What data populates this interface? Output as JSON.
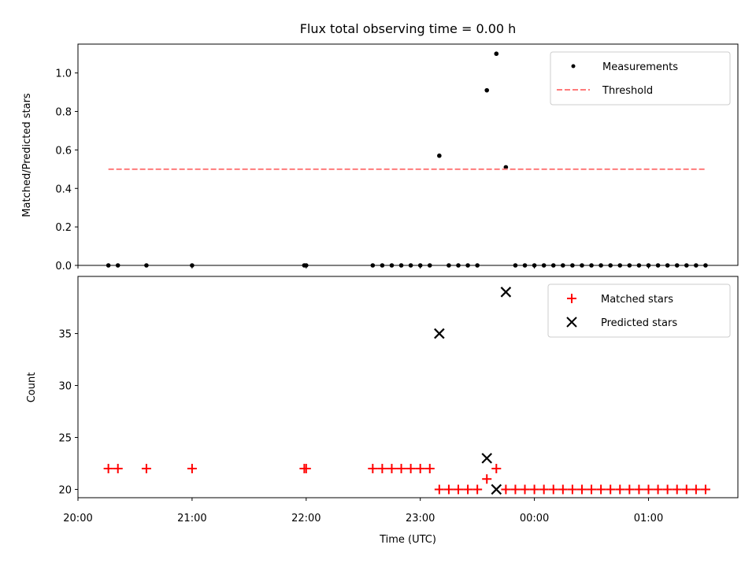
{
  "title": "Flux total observing time = 0.00 h",
  "chart_data": [
    {
      "type": "scatter",
      "ylabel": "Matched/Predicted stars",
      "ylim": [
        0,
        1.15
      ],
      "yticks": [
        0,
        0.2,
        0.4,
        0.6,
        0.8,
        1.0
      ],
      "ytick_labels": [
        "0.0",
        "0.2",
        "0.4",
        "0.6",
        "0.8",
        "1.0"
      ],
      "xlim": [
        "20:00",
        "01:47"
      ],
      "legend_position": "top-right",
      "legend": [
        "Measurements",
        "Threshold"
      ],
      "series": [
        {
          "name": "Measurements",
          "marker": "dot",
          "color": "#000000",
          "points": [
            [
              "20:16",
              0
            ],
            [
              "20:21",
              0
            ],
            [
              "20:36",
              0
            ],
            [
              "21:00",
              0
            ],
            [
              "21:59",
              0
            ],
            [
              "22:00",
              0
            ],
            [
              "22:35",
              0
            ],
            [
              "22:40",
              0
            ],
            [
              "22:45",
              0
            ],
            [
              "22:50",
              0
            ],
            [
              "22:55",
              0
            ],
            [
              "23:00",
              0
            ],
            [
              "23:05",
              0
            ],
            [
              "23:10",
              0.57
            ],
            [
              "23:15",
              0
            ],
            [
              "23:20",
              0
            ],
            [
              "23:25",
              0
            ],
            [
              "23:30",
              0
            ],
            [
              "23:35",
              0.91
            ],
            [
              "23:40",
              1.1
            ],
            [
              "23:45",
              0.51
            ],
            [
              "23:50",
              0
            ],
            [
              "23:55",
              0
            ],
            [
              "00:00",
              0
            ],
            [
              "00:05",
              0
            ],
            [
              "00:10",
              0
            ],
            [
              "00:15",
              0
            ],
            [
              "00:20",
              0
            ],
            [
              "00:25",
              0
            ],
            [
              "00:30",
              0
            ],
            [
              "00:35",
              0
            ],
            [
              "00:40",
              0
            ],
            [
              "00:45",
              0
            ],
            [
              "00:50",
              0
            ],
            [
              "00:55",
              0
            ],
            [
              "01:00",
              0
            ],
            [
              "01:05",
              0
            ],
            [
              "01:10",
              0
            ],
            [
              "01:15",
              0
            ],
            [
              "01:20",
              0
            ],
            [
              "01:25",
              0
            ],
            [
              "01:30",
              0
            ]
          ]
        },
        {
          "name": "Threshold",
          "style": "dashed-line",
          "color": "#ff7b7b",
          "value": 0.5,
          "x_range": [
            "20:16",
            "01:30"
          ]
        }
      ]
    },
    {
      "type": "scatter",
      "xlabel": "Time (UTC)",
      "ylabel": "Count",
      "ylim": [
        19.2,
        40.5
      ],
      "yticks": [
        20,
        25,
        30,
        35
      ],
      "ytick_labels": [
        "20",
        "25",
        "30",
        "35"
      ],
      "xlim": [
        "20:00",
        "01:47"
      ],
      "xticks": [
        "20:00",
        "21:00",
        "22:00",
        "23:00",
        "00:00",
        "01:00"
      ],
      "legend_position": "top-right",
      "legend": [
        "Matched stars",
        "Predicted stars"
      ],
      "series": [
        {
          "name": "Matched stars",
          "marker": "plus",
          "color": "#ff0000",
          "points": [
            [
              "20:16",
              22
            ],
            [
              "20:21",
              22
            ],
            [
              "20:36",
              22
            ],
            [
              "21:00",
              22
            ],
            [
              "21:59",
              22
            ],
            [
              "22:00",
              22
            ],
            [
              "22:35",
              22
            ],
            [
              "22:40",
              22
            ],
            [
              "22:45",
              22
            ],
            [
              "22:50",
              22
            ],
            [
              "22:55",
              22
            ],
            [
              "23:00",
              22
            ],
            [
              "23:05",
              22
            ],
            [
              "23:10",
              20
            ],
            [
              "23:15",
              20
            ],
            [
              "23:20",
              20
            ],
            [
              "23:25",
              20
            ],
            [
              "23:30",
              20
            ],
            [
              "23:35",
              21
            ],
            [
              "23:40",
              22
            ],
            [
              "23:45",
              20
            ],
            [
              "23:50",
              20
            ],
            [
              "23:55",
              20
            ],
            [
              "00:00",
              20
            ],
            [
              "00:05",
              20
            ],
            [
              "00:10",
              20
            ],
            [
              "00:15",
              20
            ],
            [
              "00:20",
              20
            ],
            [
              "00:25",
              20
            ],
            [
              "00:30",
              20
            ],
            [
              "00:35",
              20
            ],
            [
              "00:40",
              20
            ],
            [
              "00:45",
              20
            ],
            [
              "00:50",
              20
            ],
            [
              "00:55",
              20
            ],
            [
              "01:00",
              20
            ],
            [
              "01:05",
              20
            ],
            [
              "01:10",
              20
            ],
            [
              "01:15",
              20
            ],
            [
              "01:20",
              20
            ],
            [
              "01:25",
              20
            ],
            [
              "01:30",
              20
            ]
          ]
        },
        {
          "name": "Predicted stars",
          "marker": "x",
          "color": "#000000",
          "points": [
            [
              "23:10",
              35
            ],
            [
              "23:35",
              23
            ],
            [
              "23:40",
              20
            ],
            [
              "23:45",
              39
            ]
          ]
        }
      ]
    }
  ]
}
